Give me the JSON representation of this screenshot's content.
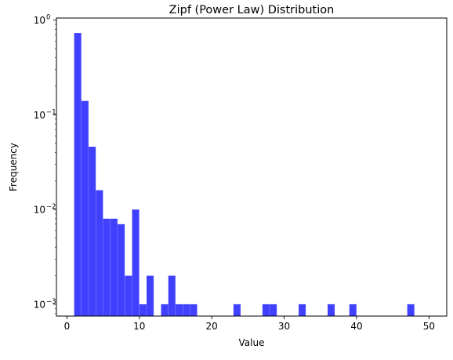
{
  "chart_data": {
    "type": "bar",
    "title": "Zipf (Power Law) Distribution",
    "xlabel": "Value",
    "ylabel": "Frequency",
    "xlim": [
      -1.45,
      52.45
    ],
    "ylim": [
      0.00075,
      1.05
    ],
    "yscale": "log",
    "grid": false,
    "bar_color": "#4040ff",
    "bin_width": 0.98,
    "x_ticks": [
      {
        "value": 0,
        "label": "0"
      },
      {
        "value": 10,
        "label": "10"
      },
      {
        "value": 20,
        "label": "20"
      },
      {
        "value": 30,
        "label": "30"
      },
      {
        "value": 40,
        "label": "40"
      },
      {
        "value": 50,
        "label": "50"
      }
    ],
    "y_ticks": [
      {
        "value": 0.001,
        "base": "10",
        "exp": "−3"
      },
      {
        "value": 0.01,
        "base": "10",
        "exp": "−2"
      },
      {
        "value": 0.1,
        "base": "10",
        "exp": "−1"
      },
      {
        "value": 1,
        "base": "10",
        "exp": "0"
      }
    ],
    "bins": [
      {
        "x": 1.0,
        "value": 0.73
      },
      {
        "x": 2.0,
        "value": 0.14
      },
      {
        "x": 3.0,
        "value": 0.046
      },
      {
        "x": 4.0,
        "value": 0.016
      },
      {
        "x": 5.0,
        "value": 0.008
      },
      {
        "x": 6.0,
        "value": 0.008
      },
      {
        "x": 7.0,
        "value": 0.007
      },
      {
        "x": 8.0,
        "value": 0.002
      },
      {
        "x": 9.0,
        "value": 0.01
      },
      {
        "x": 10.0,
        "value": 0.001
      },
      {
        "x": 11.0,
        "value": 0.002
      },
      {
        "x": 13.0,
        "value": 0.001
      },
      {
        "x": 14.0,
        "value": 0.002
      },
      {
        "x": 15.0,
        "value": 0.001
      },
      {
        "x": 16.0,
        "value": 0.001
      },
      {
        "x": 17.0,
        "value": 0.001
      },
      {
        "x": 23.0,
        "value": 0.001
      },
      {
        "x": 27.0,
        "value": 0.001
      },
      {
        "x": 28.0,
        "value": 0.001
      },
      {
        "x": 32.0,
        "value": 0.001
      },
      {
        "x": 36.0,
        "value": 0.001
      },
      {
        "x": 39.0,
        "value": 0.001
      },
      {
        "x": 47.0,
        "value": 0.001
      }
    ]
  }
}
